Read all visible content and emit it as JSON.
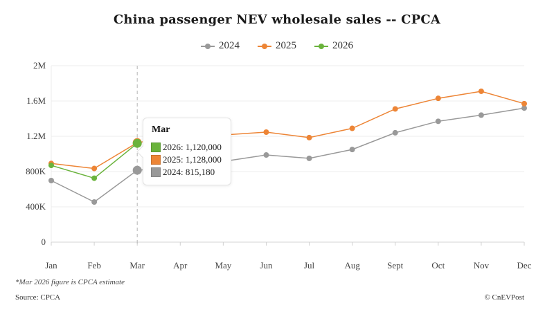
{
  "chart_data": {
    "type": "line",
    "title": "China passenger NEV wholesale sales -- CPCA",
    "xlabel": "",
    "ylabel": "",
    "categories": [
      "Jan",
      "Feb",
      "Mar",
      "Apr",
      "May",
      "Jun",
      "Jul",
      "Aug",
      "Sept",
      "Oct",
      "Nov",
      "Dec"
    ],
    "ylim": [
      0,
      2000000
    ],
    "yticks": [
      {
        "value": 0,
        "label": "0"
      },
      {
        "value": 400000,
        "label": "400K"
      },
      {
        "value": 800000,
        "label": "800K"
      },
      {
        "value": 1200000,
        "label": "1.2M"
      },
      {
        "value": 1600000,
        "label": "1.6M"
      },
      {
        "value": 2000000,
        "label": "2M"
      }
    ],
    "grid": true,
    "legend_position": "top-center",
    "series": [
      {
        "name": "2024",
        "color": "#999999",
        "values": [
          698000,
          455000,
          815180,
          850000,
          915000,
          988000,
          950000,
          1050000,
          1240000,
          1370000,
          1440000,
          1520000
        ]
      },
      {
        "name": "2025",
        "color": "#ed8536",
        "values": [
          892000,
          835000,
          1128000,
          1200000,
          1215000,
          1247000,
          1185000,
          1290000,
          1510000,
          1630000,
          1710000,
          1570000
        ]
      },
      {
        "name": "2026",
        "color": "#6ab33c",
        "values": [
          870000,
          725000,
          1120000,
          null,
          null,
          null,
          null,
          null,
          null,
          null,
          null,
          null
        ]
      }
    ],
    "highlight": {
      "category": "Mar",
      "tooltip_title": "Mar",
      "rows": [
        {
          "series": "2026",
          "text": "2026: 1,120,000",
          "color": "#6ab33c"
        },
        {
          "series": "2025",
          "text": "2025: 1,128,000",
          "color": "#ed8536"
        },
        {
          "series": "2024",
          "text": "2024: 815,180",
          "color": "#999999"
        }
      ]
    },
    "annotations": {
      "note": "*Mar 2026 figure is CPCA estimate",
      "source": "Source: CPCA",
      "credit": "© CnEVPost"
    }
  }
}
